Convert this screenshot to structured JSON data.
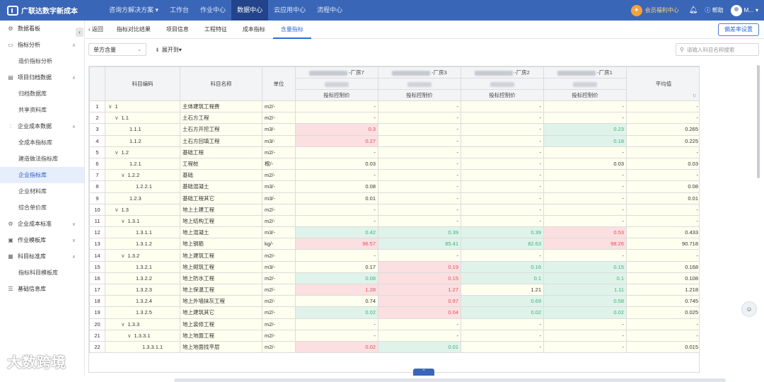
{
  "topbar": {
    "brand": "广联达数字新成本",
    "nav": [
      {
        "label": "咨询方解决方案 ▾",
        "active": false
      },
      {
        "label": "工作台",
        "active": false
      },
      {
        "label": "作业中心",
        "active": false
      },
      {
        "label": "数据中心",
        "active": true
      },
      {
        "label": "云应用中心",
        "active": false
      },
      {
        "label": "流程中心",
        "active": false
      }
    ],
    "member_label": "会员福利中心",
    "help_label": "帮助",
    "user_name": "M..."
  },
  "sidebar": {
    "items": [
      {
        "label": "数据看板",
        "level": 0,
        "icon": "gear-icon",
        "caret": ""
      },
      {
        "label": "指标分析",
        "level": 0,
        "icon": "chart-icon",
        "caret": "∧"
      },
      {
        "label": "造价指标分析",
        "level": 1
      },
      {
        "label": "项目归档数据",
        "level": 0,
        "icon": "archive-icon",
        "caret": "∧"
      },
      {
        "label": "归档数据库",
        "level": 1
      },
      {
        "label": "共享资料库",
        "level": 1
      },
      {
        "label": "企业成本数据",
        "level": 0,
        "icon": "bar-icon",
        "caret": "∧"
      },
      {
        "label": "全成本指标库",
        "level": 1
      },
      {
        "label": "建造做法指标库",
        "level": 1
      },
      {
        "label": "企业指标库",
        "level": 1,
        "active": true
      },
      {
        "label": "企业材料库",
        "level": 1
      },
      {
        "label": "综合单价库",
        "level": 1
      },
      {
        "label": "企业成本标准",
        "level": 0,
        "icon": "standard-icon",
        "caret": "∨"
      },
      {
        "label": "作业模板库",
        "level": 0,
        "icon": "template-icon",
        "caret": "∨"
      },
      {
        "label": "科目标准库",
        "level": 0,
        "icon": "subject-icon",
        "caret": "∧"
      },
      {
        "label": "指标科目模板库",
        "level": 1
      },
      {
        "label": "基础信息库",
        "level": 0,
        "icon": "database-icon",
        "caret": ""
      }
    ]
  },
  "tabs": {
    "back_label": "返回",
    "items": [
      "指标对比结果",
      "项目信息",
      "工程特征",
      "成本指标",
      "含量指标"
    ],
    "active_index": 4,
    "deviation_button": "偏差率设置"
  },
  "toolbar": {
    "select_value": "单方含量",
    "expand_label": "展开到",
    "search_placeholder": "请输入科目名称搜索"
  },
  "table": {
    "headers": {
      "code": "科目编码",
      "name": "科目名称",
      "unit": "单位",
      "average": "平均值"
    },
    "projects": [
      {
        "suffix": "-厂房7",
        "sub": "投标控制价"
      },
      {
        "suffix": "-厂房3",
        "sub": "投标控制价"
      },
      {
        "suffix": "-厂房2",
        "sub": "投标控制价"
      },
      {
        "suffix": "-厂房1",
        "sub": "投标控制价"
      }
    ],
    "rows": [
      {
        "idx": "1",
        "code": "1",
        "toggle": "∨",
        "indent": 0,
        "name": "主体建筑工程费",
        "unit": "m2/-",
        "v": [
          "-",
          "-",
          "-",
          "-"
        ],
        "c": [
          "",
          "",
          "",
          ""
        ],
        "avg": "-"
      },
      {
        "idx": "2",
        "code": "1.1",
        "toggle": "∨",
        "indent": 1,
        "name": "土石方工程",
        "unit": "m2/-",
        "v": [
          "-",
          "-",
          "-",
          "-"
        ],
        "c": [
          "",
          "",
          "",
          ""
        ],
        "avg": "-"
      },
      {
        "idx": "3",
        "code": "1.1.1",
        "toggle": "",
        "indent": 2,
        "name": "土石方开挖工程",
        "unit": "m3/-",
        "v": [
          "0.3",
          "-",
          "-",
          "0.23"
        ],
        "c": [
          "red",
          "",
          "",
          "green"
        ],
        "avg": "0.265"
      },
      {
        "idx": "4",
        "code": "1.1.2",
        "toggle": "",
        "indent": 2,
        "name": "土石方回填工程",
        "unit": "m3/-",
        "v": [
          "0.27",
          "-",
          "-",
          "0.18"
        ],
        "c": [
          "red",
          "",
          "",
          "green"
        ],
        "avg": "0.225"
      },
      {
        "idx": "5",
        "code": "1.2",
        "toggle": "∨",
        "indent": 1,
        "name": "基础工程",
        "unit": "m2/-",
        "v": [
          "-",
          "-",
          "-",
          "-"
        ],
        "c": [
          "",
          "",
          "",
          ""
        ],
        "avg": "-"
      },
      {
        "idx": "6",
        "code": "1.2.1",
        "toggle": "",
        "indent": 2,
        "name": "工程桩",
        "unit": "根/-",
        "v": [
          "0.03",
          "-",
          "-",
          "0.03"
        ],
        "c": [
          "",
          "",
          "",
          ""
        ],
        "avg": "0.03"
      },
      {
        "idx": "7",
        "code": "1.2.2",
        "toggle": "∨",
        "indent": 2,
        "name": "基础",
        "unit": "m2/-",
        "v": [
          "-",
          "-",
          "-",
          "-"
        ],
        "c": [
          "",
          "",
          "",
          ""
        ],
        "avg": "-"
      },
      {
        "idx": "8",
        "code": "1.2.2.1",
        "toggle": "",
        "indent": 3,
        "name": "基础混凝土",
        "unit": "m3/-",
        "v": [
          "0.08",
          "-",
          "-",
          "-"
        ],
        "c": [
          "",
          "",
          "",
          ""
        ],
        "avg": "0.08"
      },
      {
        "idx": "9",
        "code": "1.2.3",
        "toggle": "",
        "indent": 2,
        "name": "基础工程其它",
        "unit": "m3/-",
        "v": [
          "0.01",
          "-",
          "-",
          "-"
        ],
        "c": [
          "",
          "",
          "",
          ""
        ],
        "avg": "0.01"
      },
      {
        "idx": "10",
        "code": "1.3",
        "toggle": "∨",
        "indent": 1,
        "name": "地上土建工程",
        "unit": "m2/-",
        "v": [
          "-",
          "-",
          "-",
          "-"
        ],
        "c": [
          "",
          "",
          "",
          ""
        ],
        "avg": "-"
      },
      {
        "idx": "11",
        "code": "1.3.1",
        "toggle": "∨",
        "indent": 2,
        "name": "地上结构工程",
        "unit": "m2/-",
        "v": [
          "-",
          "-",
          "-",
          "-"
        ],
        "c": [
          "",
          "",
          "",
          ""
        ],
        "avg": "-"
      },
      {
        "idx": "12",
        "code": "1.3.1.1",
        "toggle": "",
        "indent": 3,
        "name": "地上混凝土",
        "unit": "m3/-",
        "v": [
          "0.42",
          "0.39",
          "0.39",
          "0.53"
        ],
        "c": [
          "green",
          "green",
          "green",
          "red"
        ],
        "avg": "0.433"
      },
      {
        "idx": "13",
        "code": "1.3.1.2",
        "toggle": "",
        "indent": 3,
        "name": "地上钢筋",
        "unit": "kg/-",
        "v": [
          "96.57",
          "85.41",
          "82.63",
          "98.26"
        ],
        "c": [
          "red",
          "green",
          "green",
          "red"
        ],
        "avg": "90.718"
      },
      {
        "idx": "14",
        "code": "1.3.2",
        "toggle": "∨",
        "indent": 2,
        "name": "地上建筑工程",
        "unit": "m2/-",
        "v": [
          "-",
          "-",
          "-",
          "-"
        ],
        "c": [
          "",
          "",
          "",
          ""
        ],
        "avg": "-"
      },
      {
        "idx": "15",
        "code": "1.3.2.1",
        "toggle": "",
        "indent": 3,
        "name": "地上砌筑工程",
        "unit": "m3/-",
        "v": [
          "0.17",
          "0.19",
          "0.16",
          "0.15"
        ],
        "c": [
          "",
          "red",
          "green",
          "green"
        ],
        "avg": "0.168"
      },
      {
        "idx": "16",
        "code": "1.3.2.2",
        "toggle": "",
        "indent": 3,
        "name": "地上防水工程",
        "unit": "m2/-",
        "v": [
          "0.08",
          "0.15",
          "0.1",
          "0.1"
        ],
        "c": [
          "green",
          "red",
          "green",
          "green"
        ],
        "avg": "0.108"
      },
      {
        "idx": "17",
        "code": "1.3.2.3",
        "toggle": "",
        "indent": 3,
        "name": "地上保温工程",
        "unit": "m2/-",
        "v": [
          "1.28",
          "1.27",
          "1.21",
          "1.11"
        ],
        "c": [
          "red",
          "red",
          "",
          "green"
        ],
        "avg": "1.218"
      },
      {
        "idx": "18",
        "code": "1.3.2.4",
        "toggle": "",
        "indent": 3,
        "name": "地上外墙抹灰工程",
        "unit": "m2/-",
        "v": [
          "0.74",
          "0.97",
          "0.69",
          "0.58"
        ],
        "c": [
          "",
          "red",
          "green",
          "green"
        ],
        "avg": "0.745"
      },
      {
        "idx": "19",
        "code": "1.3.2.5",
        "toggle": "",
        "indent": 3,
        "name": "地上建筑其它",
        "unit": "m2/-",
        "v": [
          "0.02",
          "0.04",
          "0.02",
          "0.02"
        ],
        "c": [
          "green",
          "red",
          "green",
          "green"
        ],
        "avg": "0.025"
      },
      {
        "idx": "20",
        "code": "1.3.3",
        "toggle": "∨",
        "indent": 2,
        "name": "地上装修工程",
        "unit": "m2/-",
        "v": [
          "-",
          "-",
          "-",
          "-"
        ],
        "c": [
          "",
          "",
          "",
          ""
        ],
        "avg": "-"
      },
      {
        "idx": "21",
        "code": "1.3.3.1",
        "toggle": "∨",
        "indent": 3,
        "name": "地上地面工程",
        "unit": "m2/-",
        "v": [
          "-",
          "-",
          "-",
          "-"
        ],
        "c": [
          "",
          "",
          "",
          ""
        ],
        "avg": "-"
      },
      {
        "idx": "22",
        "code": "1.3.3.1.1",
        "toggle": "",
        "indent": 4,
        "name": "地上地面找平层",
        "unit": "m2/-",
        "v": [
          "0.02",
          "0.01",
          "-",
          "-"
        ],
        "c": [
          "red",
          "green",
          "",
          ""
        ],
        "avg": "0.015"
      }
    ]
  },
  "watermark": "大数跨境"
}
